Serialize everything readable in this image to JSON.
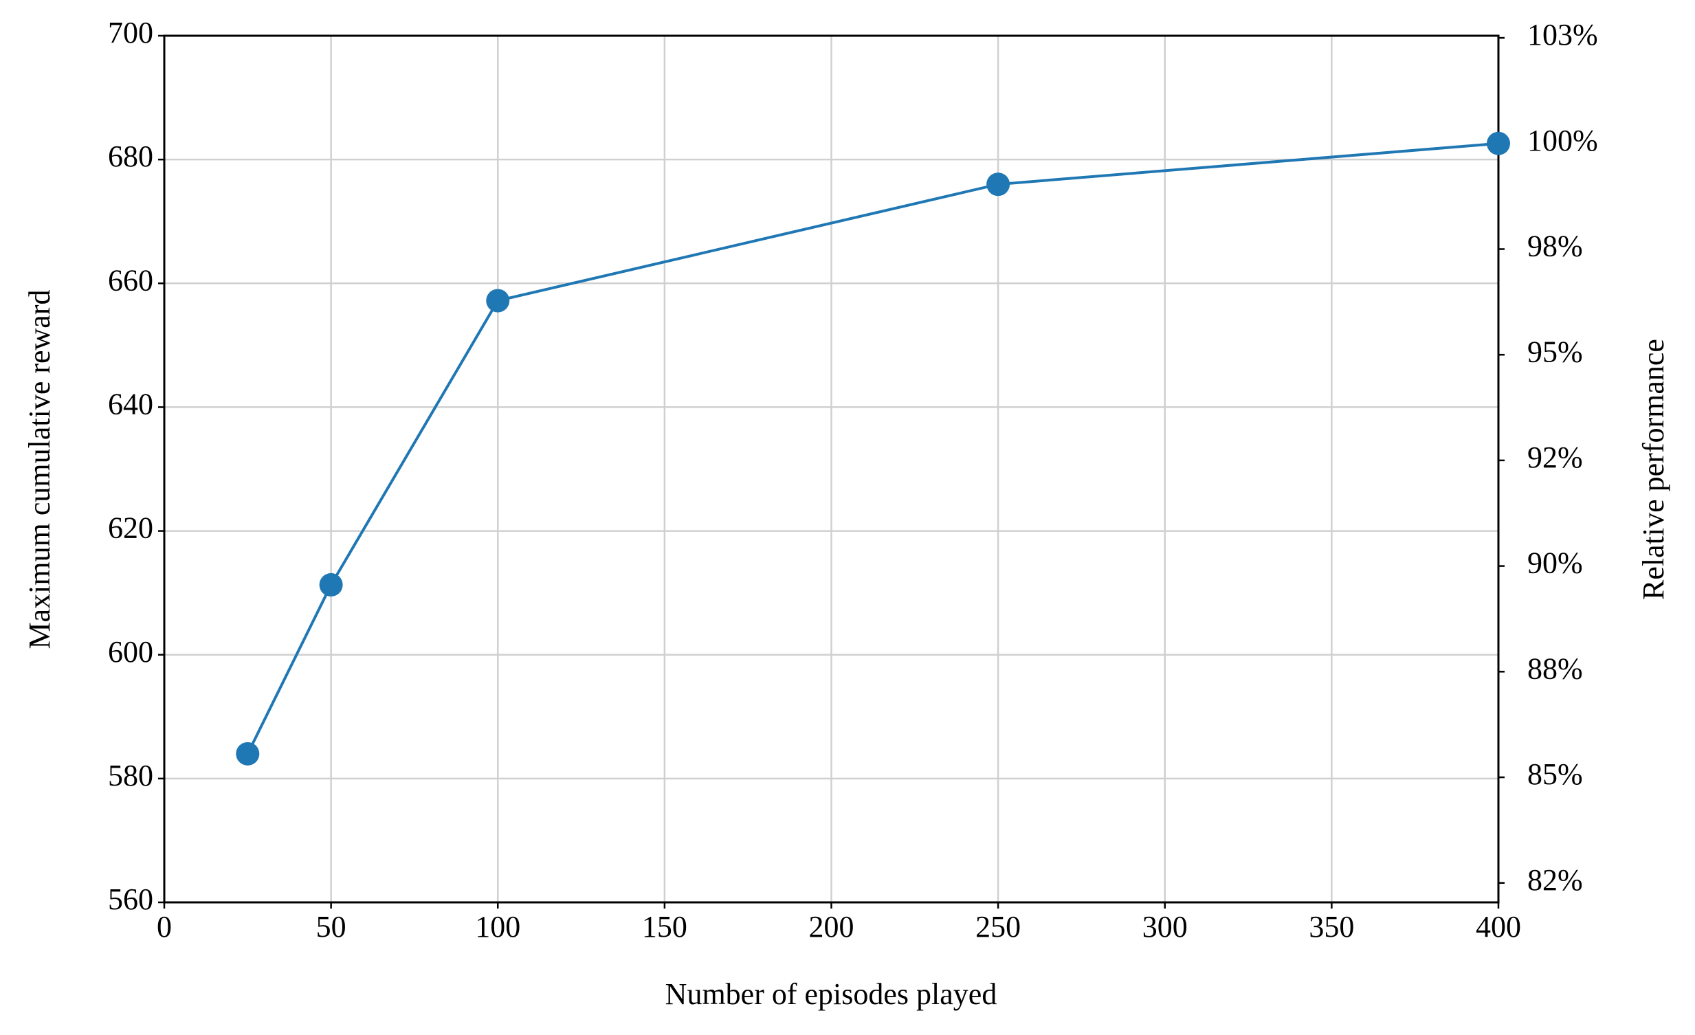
{
  "chart_data": {
    "type": "line",
    "x_label": "Number of episodes played",
    "y_label": "Maximum cumulative reward",
    "y2_label": "Relative performance",
    "x": [
      25,
      50,
      100,
      250,
      400
    ],
    "series": [
      {
        "color": "#1f77b4",
        "values": [
          584,
          611.3,
          657.2,
          676,
          682.6
        ]
      }
    ],
    "xlim": [
      0,
      400
    ],
    "xticks": [
      0,
      50,
      100,
      150,
      200,
      250,
      300,
      350,
      400
    ],
    "ylim": [
      560,
      700
    ],
    "yticks": [
      560,
      580,
      600,
      620,
      640,
      660,
      680,
      700
    ],
    "y2lim": [
      82.04,
      102.55
    ],
    "y2ticks": [
      {
        "value": 82.5,
        "label": "82%"
      },
      {
        "value": 85,
        "label": "85%"
      },
      {
        "value": 87.5,
        "label": "88%"
      },
      {
        "value": 90,
        "label": "90%"
      },
      {
        "value": 92.5,
        "label": "92%"
      },
      {
        "value": 95,
        "label": "95%"
      },
      {
        "value": 97.5,
        "label": "98%"
      },
      {
        "value": 100,
        "label": "100%"
      },
      {
        "value": 102.5,
        "label": "103%"
      }
    ],
    "grid": true
  }
}
